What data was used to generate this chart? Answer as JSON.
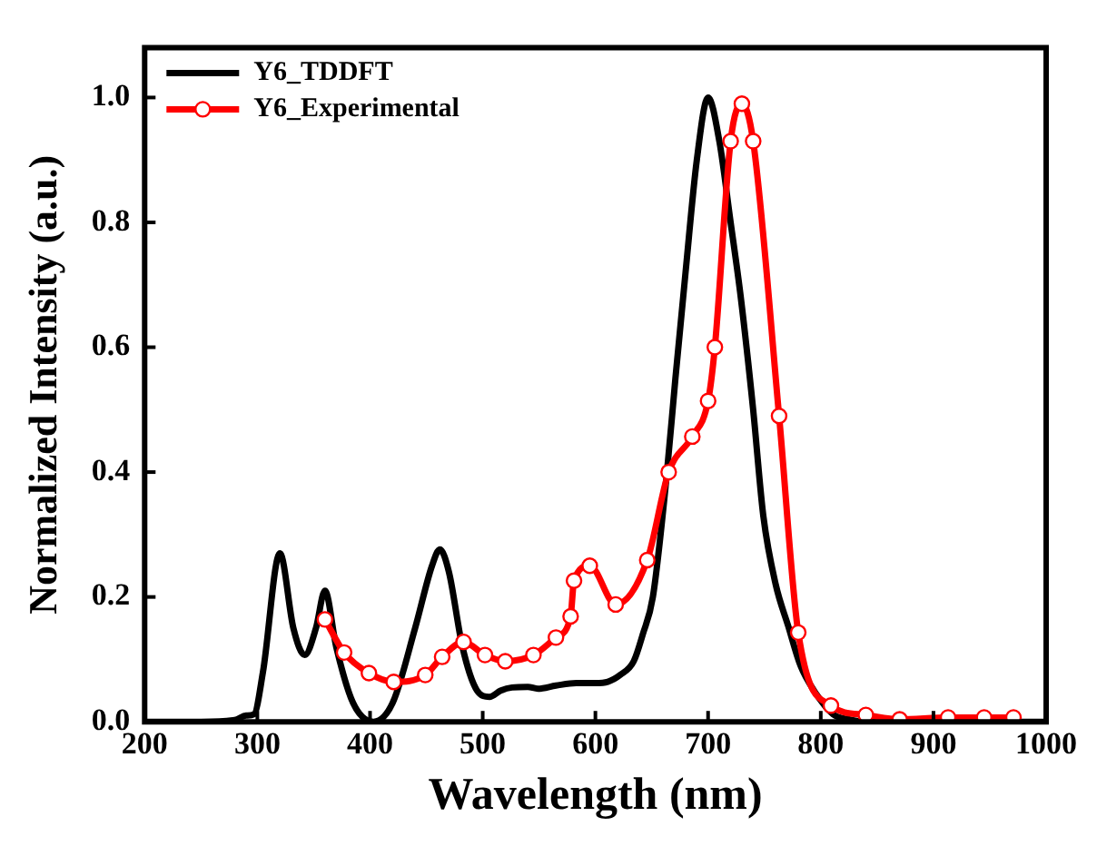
{
  "chart_data": {
    "type": "line",
    "xlabel": "Wavelength (nm)",
    "ylabel": "Normalized Intensity (a.u.)",
    "xlim": [
      200,
      1000
    ],
    "xticks": [
      200,
      300,
      400,
      500,
      600,
      700,
      800,
      900,
      1000
    ],
    "ylim": [
      0,
      1.08
    ],
    "yticks": [
      {
        "value": 0,
        "label": "0.0"
      },
      {
        "value": 0.2,
        "label": "0.2"
      },
      {
        "value": 0.4,
        "label": "0.4"
      },
      {
        "value": 0.6,
        "label": "0.6"
      },
      {
        "value": 0.8,
        "label": "0.8"
      },
      {
        "value": 1,
        "label": "1.0"
      }
    ],
    "grid": false,
    "legend": "top left",
    "series": [
      {
        "name": "Y6_TDDFT",
        "color": "#000000",
        "marker": "none",
        "x": [
          200,
          250,
          280,
          290,
          297,
          305,
          320,
          332,
          342,
          352,
          360,
          370,
          385,
          403,
          420,
          440,
          455,
          462,
          470,
          482,
          495,
          506,
          516,
          526,
          540,
          549,
          565,
          583,
          600,
          611,
          622,
          634,
          642,
          651,
          663,
          671,
          680,
          690,
          700,
          710,
          720,
          729,
          740,
          749,
          760,
          771,
          782,
          794,
          811,
          825,
          840,
          870,
          1000
        ],
        "values": [
          0,
          0,
          0.003,
          0.01,
          0.012,
          0.08,
          0.27,
          0.15,
          0.107,
          0.15,
          0.21,
          0.12,
          0.03,
          0.0,
          0.03,
          0.15,
          0.25,
          0.276,
          0.24,
          0.12,
          0.05,
          0.04,
          0.05,
          0.055,
          0.056,
          0.053,
          0.058,
          0.062,
          0.062,
          0.064,
          0.075,
          0.097,
          0.14,
          0.2,
          0.39,
          0.55,
          0.72,
          0.9,
          1.0,
          0.93,
          0.8,
          0.68,
          0.5,
          0.33,
          0.22,
          0.154,
          0.09,
          0.05,
          0.012,
          0.004,
          0,
          0,
          0
        ]
      },
      {
        "name": "Y6_Experimental",
        "color": "#ff0000",
        "marker": "circle",
        "x": [
          360,
          377,
          399,
          421,
          449,
          464,
          483,
          502,
          520,
          545,
          565,
          578,
          581,
          595,
          618,
          646,
          665,
          686,
          700,
          706,
          720,
          730,
          740,
          763,
          780,
          809,
          840,
          870,
          913,
          945,
          971
        ],
        "values": [
          0.164,
          0.111,
          0.078,
          0.064,
          0.075,
          0.104,
          0.128,
          0.107,
          0.097,
          0.107,
          0.135,
          0.169,
          0.226,
          0.25,
          0.188,
          0.259,
          0.4,
          0.457,
          0.514,
          0.6,
          0.93,
          0.99,
          0.93,
          0.49,
          0.143,
          0.026,
          0.011,
          0.004,
          0.007,
          0.007,
          0.007
        ]
      }
    ]
  }
}
